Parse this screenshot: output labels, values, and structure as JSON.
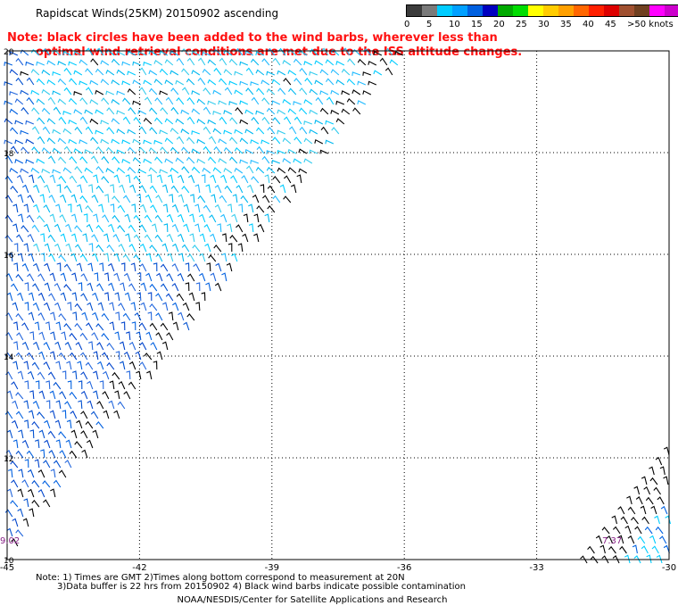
{
  "title": "Rapidscat Winds(25KM) 20150902 ascending",
  "warning_lines": [
    "Note: black circles have been added to the wind barbs, wherever less than",
    "optimal wind retrieval conditions are met due to the ISS altitude changes."
  ],
  "legend": {
    "colors": [
      "#3c3c3c",
      "#7a7a7a",
      "#00ccff",
      "#00a0ff",
      "#0060e0",
      "#0000c0",
      "#00aa00",
      "#00dd00",
      "#ffff00",
      "#ffcc00",
      "#ffa000",
      "#ff6600",
      "#ff2000",
      "#dd0000",
      "#a05030",
      "#704020",
      "#ff00ff",
      "#cc00cc",
      "#880088",
      "#550066"
    ],
    "labels": [
      "0",
      "5",
      "10",
      "15",
      "20",
      "25",
      "30",
      "35",
      "40",
      "45",
      ">50 knots"
    ]
  },
  "axes": {
    "x_ticks": [
      "-45",
      "-42",
      "-39",
      "-36",
      "-33",
      "-30"
    ],
    "y_ticks": [
      "20",
      "18",
      "16",
      "14",
      "12",
      "10"
    ]
  },
  "time_labels": [
    "9.02",
    "7.37"
  ],
  "footer": {
    "line1": "Note: 1) Times are GMT 2)Times along bottom correspond to measurement at 20N",
    "line2": "3)Data buffer is 22 hrs from 20150902 4) Black wind barbs indicate possible contamination",
    "credit": "NOAA/NESDIS/Center for Satellite Applications and Research"
  },
  "chart_data": {
    "type": "wind-barb-map",
    "xlim": [
      -45,
      -30
    ],
    "ylim": [
      10,
      20
    ],
    "grid": true,
    "units": "knots"
  }
}
